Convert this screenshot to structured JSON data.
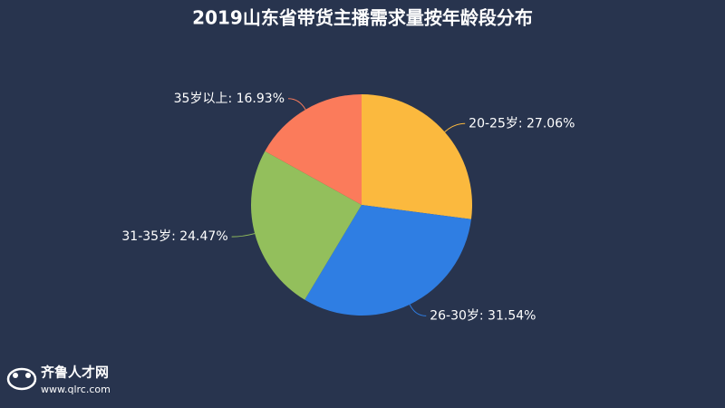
{
  "chart_data": {
    "type": "pie",
    "title": "2019山东省带货主播需求量按年龄段分布",
    "values": [
      27.06,
      31.54,
      24.47,
      16.93
    ],
    "value_labels": [
      "20-25岁: 27.06%",
      "26-30岁: 31.54%",
      "31-35岁: 24.47%",
      "35岁以上: 16.93%"
    ],
    "colors": [
      "#fbb93e",
      "#2f7ee3",
      "#93bf5c",
      "#fb7b5b"
    ]
  },
  "watermark": {
    "name": "齐鲁人才网",
    "url": "www.qlrc.com"
  }
}
